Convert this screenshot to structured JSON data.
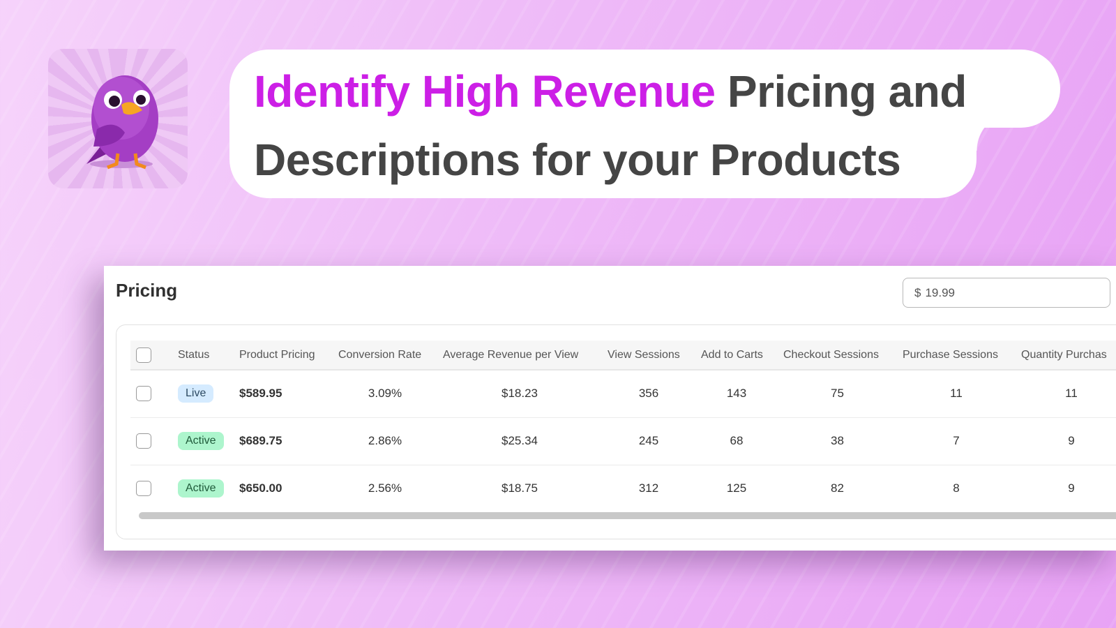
{
  "headline": {
    "highlight": "Identify High Revenue",
    "line1_rest": "Pricing and",
    "line2": "Descriptions for your Products"
  },
  "colors": {
    "highlight": "#cc1fe6",
    "text": "#454545",
    "live_badge": "#d5ebff",
    "active_badge": "#adf5cd"
  },
  "logo": {
    "icon": "purple-bird-mascot"
  },
  "panel": {
    "title": "Pricing",
    "price_input": {
      "prefix": "$",
      "value": "19.99"
    }
  },
  "table": {
    "headers": [
      "Status",
      "Product Pricing",
      "Conversion Rate",
      "Average Revenue per View",
      "View Sessions",
      "Add to Carts",
      "Checkout Sessions",
      "Purchase Sessions",
      "Quantity Purchas"
    ],
    "rows": [
      {
        "status": "Live",
        "pricing": "$589.95",
        "conversion": "3.09%",
        "arpv": "$18.23",
        "views": "356",
        "carts": "143",
        "checkout": "75",
        "purchases": "11",
        "quantity": "11"
      },
      {
        "status": "Active",
        "pricing": "$689.75",
        "conversion": "2.86%",
        "arpv": "$25.34",
        "views": "245",
        "carts": "68",
        "checkout": "38",
        "purchases": "7",
        "quantity": "9"
      },
      {
        "status": "Active",
        "pricing": "$650.00",
        "conversion": "2.56%",
        "arpv": "$18.75",
        "views": "312",
        "carts": "125",
        "checkout": "82",
        "purchases": "8",
        "quantity": "9"
      }
    ]
  }
}
